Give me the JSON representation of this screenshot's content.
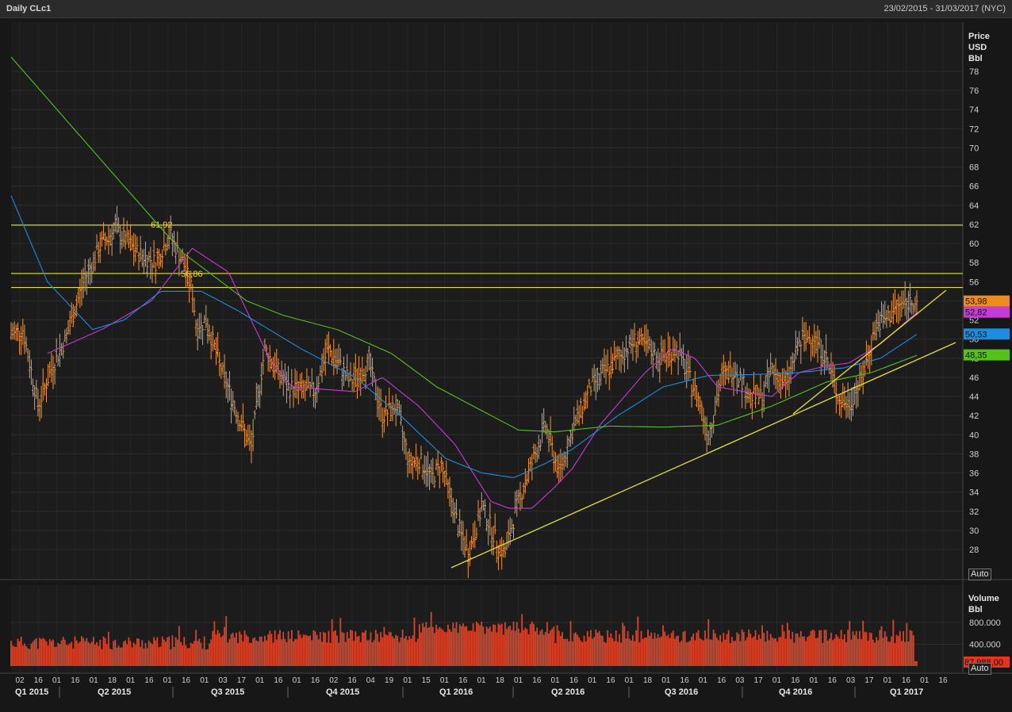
{
  "window": {
    "title": "Daily CLc1",
    "date_range": "23/02/2015 - 31/03/2017 (NYC)"
  },
  "price_panel": {
    "axis_label": [
      "Price",
      "USD",
      "Bbl"
    ],
    "auto_button": "Auto",
    "last_values": [
      {
        "label": "53,98",
        "color": "#f08a1c",
        "value": 53.98
      },
      {
        "label": "52,82",
        "color": "#c63bd6",
        "value": 52.82
      },
      {
        "label": "50,53",
        "color": "#1c8de0",
        "value": 50.53
      },
      {
        "label": "48,35",
        "color": "#55c21c",
        "value": 48.35
      }
    ],
    "hlines": [
      {
        "value": 61.92,
        "label": "61,92"
      },
      {
        "value": 56.86,
        "label": "56,86"
      },
      {
        "value": 55.4,
        "label": ""
      }
    ]
  },
  "volume_panel": {
    "axis_label": [
      "Volume",
      "Bbl"
    ],
    "auto_button": "Auto",
    "last_value": "87.988,00",
    "last_value_color": "#e8341c"
  },
  "chart_data": {
    "type": "bar",
    "title": "Daily CLc1",
    "subtitle": "23/02/2015 - 31/03/2017 (NYC)",
    "ylabel": "Price USD Bbl",
    "ylim": [
      26,
      80
    ],
    "yticks": [
      28,
      30,
      32,
      34,
      36,
      38,
      40,
      42,
      44,
      46,
      48,
      50,
      52,
      54,
      56,
      58,
      60,
      62,
      64,
      66,
      68,
      70,
      72,
      74,
      76,
      78
    ],
    "x_day_ticks": [
      "02",
      "16",
      "01",
      "16",
      "01",
      "18",
      "01",
      "16",
      "01",
      "16",
      "01",
      "03",
      "17",
      "01",
      "16",
      "01",
      "16",
      "02",
      "16",
      "04",
      "19",
      "01",
      "15",
      "01",
      "16",
      "01",
      "18",
      "01",
      "16",
      "01",
      "16",
      "01",
      "16",
      "01",
      "18",
      "01",
      "16",
      "01",
      "16",
      "03",
      "17",
      "01",
      "16",
      "01",
      "16",
      "03",
      "17",
      "01",
      "16",
      "01",
      "16"
    ],
    "x_quarter_labels": [
      "Q1 2015",
      "Q2 2015",
      "Q3 2015",
      "Q4 2015",
      "Q1 2016",
      "Q2 2016",
      "Q3 2016",
      "Q4 2016",
      "Q1 2017"
    ],
    "price_keypoints": [
      [
        0,
        50.5
      ],
      [
        0.013,
        51
      ],
      [
        0.03,
        43
      ],
      [
        0.045,
        47
      ],
      [
        0.06,
        50
      ],
      [
        0.08,
        56
      ],
      [
        0.1,
        60
      ],
      [
        0.115,
        61.5
      ],
      [
        0.14,
        59
      ],
      [
        0.16,
        58
      ],
      [
        0.175,
        61
      ],
      [
        0.19,
        58
      ],
      [
        0.2,
        55
      ],
      [
        0.205,
        51
      ],
      [
        0.215,
        52
      ],
      [
        0.235,
        46
      ],
      [
        0.265,
        38.5
      ],
      [
        0.28,
        49
      ],
      [
        0.305,
        45
      ],
      [
        0.335,
        44.5
      ],
      [
        0.35,
        49
      ],
      [
        0.375,
        45.5
      ],
      [
        0.395,
        47.5
      ],
      [
        0.41,
        42
      ],
      [
        0.425,
        43
      ],
      [
        0.44,
        37
      ],
      [
        0.45,
        37.5
      ],
      [
        0.465,
        35.5
      ],
      [
        0.475,
        37
      ],
      [
        0.495,
        30
      ],
      [
        0.505,
        27.5
      ],
      [
        0.52,
        32.5
      ],
      [
        0.535,
        29
      ],
      [
        0.545,
        27.5
      ],
      [
        0.56,
        33
      ],
      [
        0.575,
        37
      ],
      [
        0.59,
        41
      ],
      [
        0.605,
        36
      ],
      [
        0.62,
        40.5
      ],
      [
        0.64,
        45
      ],
      [
        0.665,
        47.5
      ],
      [
        0.69,
        50
      ],
      [
        0.715,
        48
      ],
      [
        0.735,
        49
      ],
      [
        0.76,
        43.5
      ],
      [
        0.77,
        40
      ],
      [
        0.785,
        46
      ],
      [
        0.8,
        47
      ],
      [
        0.815,
        44
      ],
      [
        0.83,
        44
      ],
      [
        0.84,
        47
      ],
      [
        0.855,
        45
      ],
      [
        0.87,
        49.5
      ],
      [
        0.885,
        50.5
      ],
      [
        0.9,
        48
      ],
      [
        0.915,
        43.5
      ],
      [
        0.925,
        43.2
      ],
      [
        0.94,
        46
      ],
      [
        0.955,
        51.5
      ],
      [
        0.965,
        52
      ],
      [
        0.98,
        53.5
      ],
      [
        1,
        54.2
      ]
    ],
    "sma_keypoints": [
      {
        "name": "",
        "color": "#c63bd6",
        "points": [
          [
            0.04,
            48.5
          ],
          [
            0.1,
            51
          ],
          [
            0.155,
            54
          ],
          [
            0.2,
            59.5
          ],
          [
            0.24,
            57
          ],
          [
            0.285,
            48
          ],
          [
            0.31,
            45
          ],
          [
            0.38,
            44.5
          ],
          [
            0.41,
            46
          ],
          [
            0.45,
            43
          ],
          [
            0.49,
            39
          ],
          [
            0.53,
            33
          ],
          [
            0.55,
            32.3
          ],
          [
            0.575,
            32.3
          ],
          [
            0.6,
            34.5
          ],
          [
            0.62,
            36.5
          ],
          [
            0.65,
            41
          ],
          [
            0.7,
            46.5
          ],
          [
            0.73,
            49
          ],
          [
            0.755,
            48
          ],
          [
            0.78,
            45
          ],
          [
            0.81,
            44.5
          ],
          [
            0.84,
            44
          ],
          [
            0.87,
            46.5
          ],
          [
            0.9,
            47.2
          ],
          [
            0.925,
            47.5
          ],
          [
            0.96,
            49.5
          ],
          [
            1,
            52.8
          ]
        ]
      },
      {
        "name": "",
        "color": "#1c8de0",
        "points": [
          [
            0,
            65
          ],
          [
            0.04,
            56
          ],
          [
            0.09,
            51
          ],
          [
            0.125,
            52
          ],
          [
            0.165,
            55
          ],
          [
            0.21,
            55
          ],
          [
            0.25,
            53
          ],
          [
            0.32,
            49
          ],
          [
            0.38,
            46
          ],
          [
            0.43,
            42
          ],
          [
            0.48,
            37.5
          ],
          [
            0.52,
            36
          ],
          [
            0.555,
            35.5
          ],
          [
            0.59,
            37
          ],
          [
            0.62,
            38.5
          ],
          [
            0.67,
            42
          ],
          [
            0.72,
            45
          ],
          [
            0.77,
            46.2
          ],
          [
            0.82,
            46.3
          ],
          [
            0.87,
            46.5
          ],
          [
            0.92,
            47
          ],
          [
            0.96,
            48
          ],
          [
            1,
            50.5
          ]
        ]
      },
      {
        "name": "",
        "color": "#55c21c",
        "points": [
          [
            0,
            79.5
          ],
          [
            0.06,
            73
          ],
          [
            0.12,
            66.5
          ],
          [
            0.19,
            59
          ],
          [
            0.26,
            54
          ],
          [
            0.3,
            52.5
          ],
          [
            0.36,
            51
          ],
          [
            0.42,
            48.5
          ],
          [
            0.47,
            45
          ],
          [
            0.52,
            42.5
          ],
          [
            0.56,
            40.5
          ],
          [
            0.6,
            40.3
          ],
          [
            0.66,
            40.9
          ],
          [
            0.72,
            40.8
          ],
          [
            0.78,
            41
          ],
          [
            0.84,
            43
          ],
          [
            0.9,
            45.5
          ],
          [
            0.95,
            46.5
          ],
          [
            1,
            48.3
          ]
        ]
      }
    ],
    "volume_ylabel": "Volume Bbl",
    "volume_ylim": [
      0,
      1000000
    ],
    "volume_yticks": [
      400000,
      800000
    ],
    "volume_ytick_labels": [
      "400.000",
      "800.000"
    ],
    "volume_last": 87988
  }
}
